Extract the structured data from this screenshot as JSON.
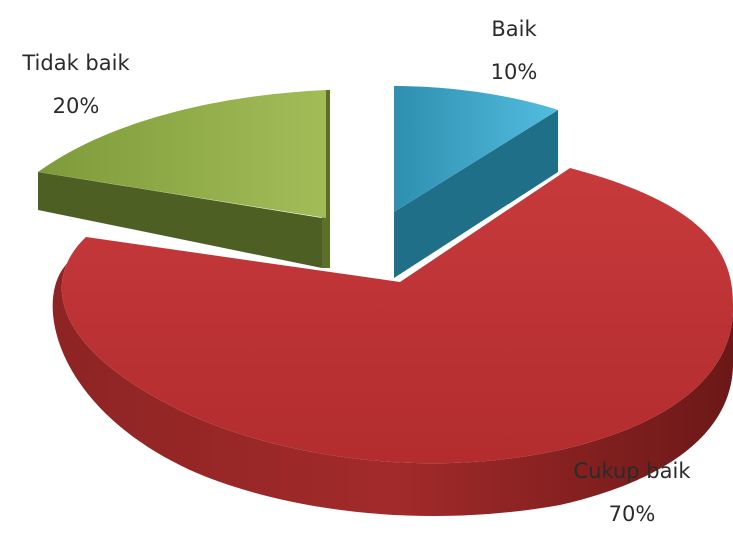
{
  "chart_data": {
    "type": "pie",
    "title": "",
    "slices": [
      {
        "label": "Baik",
        "value": 10,
        "value_label": "10%",
        "color": "#3aa7c9",
        "side_color": "#1f6f89"
      },
      {
        "label": "Cukup baik",
        "value": 70,
        "value_label": "70%",
        "color": "#c8373a",
        "side_color": "#8a1f1f"
      },
      {
        "label": "Tidak baik",
        "value": 20,
        "value_label": "20%",
        "color": "#93b04c",
        "side_color": "#4c5e22"
      }
    ],
    "exploded": true,
    "three_d": true,
    "legend": "none"
  }
}
